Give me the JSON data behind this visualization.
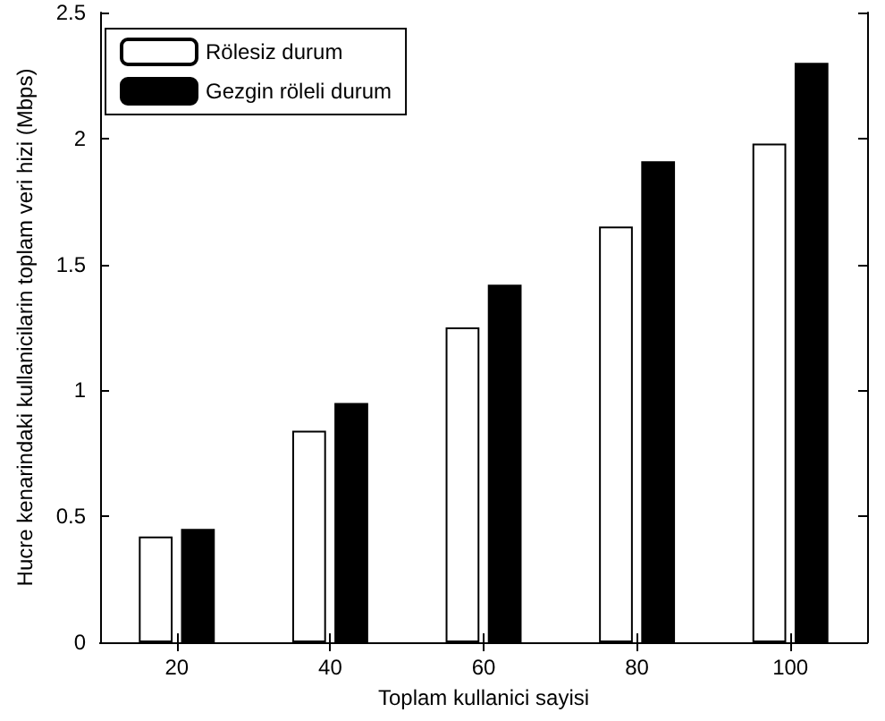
{
  "chart_data": {
    "type": "bar",
    "xlabel": "Toplam kullanici sayisi",
    "ylabel": "Hucre kenarindaki kullanicilarin toplam veri hizi (Mbps)",
    "categories": [
      "20",
      "40",
      "60",
      "80",
      "100"
    ],
    "series": [
      {
        "name": "Rölesiz durum",
        "color": "#ffffff",
        "values": [
          0.42,
          0.84,
          1.25,
          1.65,
          1.98
        ]
      },
      {
        "name": "Gezgin röleli durum",
        "color": "#000000",
        "values": [
          0.45,
          0.95,
          1.42,
          1.91,
          2.3
        ]
      }
    ],
    "ylim": [
      0,
      2.5
    ],
    "yticks": [
      0,
      0.5,
      1,
      1.5,
      2,
      2.5
    ],
    "grid": false,
    "legend": "top left"
  }
}
